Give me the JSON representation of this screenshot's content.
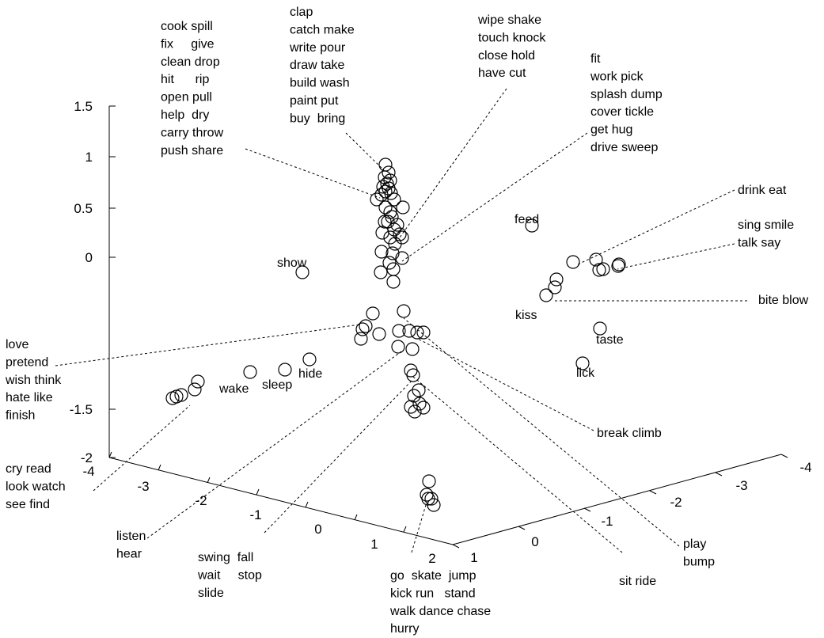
{
  "chart_data": {
    "type": "scatter",
    "title": "",
    "xlabel": "",
    "ylabel": "",
    "zlabel": "",
    "projection": "3d",
    "grid": false,
    "z_axis": {
      "ticks": [
        "1.5",
        "1",
        "0.5",
        "0",
        "-1.5",
        "-2"
      ]
    },
    "left_axis": {
      "ticks": [
        "-4",
        "-3",
        "-2",
        "-1",
        "0",
        "1",
        "2"
      ]
    },
    "right_axis": {
      "ticks": [
        "1",
        "0",
        "-1",
        "-2",
        "-3",
        "-4"
      ]
    },
    "point_labels": [
      "show",
      "feed",
      "kiss",
      "taste",
      "lick",
      "hide",
      "sleep",
      "wake"
    ],
    "cluster_labels": [
      {
        "lines": [
          "cook spill",
          "fix     give",
          "clean drop",
          "hit      rip",
          "open pull",
          "help  dry",
          "carry throw",
          "push share"
        ]
      },
      {
        "lines": [
          "clap",
          "catch make",
          "write pour",
          "draw take",
          "build wash",
          "paint put",
          "buy  bring"
        ]
      },
      {
        "lines": [
          "wipe shake",
          "touch knock",
          "close hold",
          "have cut"
        ]
      },
      {
        "lines": [
          "fit",
          "work pick",
          "splash dump",
          "cover tickle",
          "get hug",
          "drive sweep"
        ]
      },
      {
        "lines": [
          "drink eat"
        ]
      },
      {
        "lines": [
          "sing smile",
          "talk say"
        ]
      },
      {
        "lines": [
          "bite blow"
        ]
      },
      {
        "lines": [
          "love",
          "pretend",
          "wish think",
          "hate like",
          "finish"
        ]
      },
      {
        "lines": [
          "break climb"
        ]
      },
      {
        "lines": [
          "cry read",
          "look watch",
          "see find"
        ]
      },
      {
        "lines": [
          "listen",
          "hear"
        ]
      },
      {
        "lines": [
          "swing  fall",
          "wait     stop",
          "slide"
        ]
      },
      {
        "lines": [
          "go  skate  jump",
          "kick run   stand",
          "walk dance chase",
          "hurry"
        ]
      },
      {
        "lines": [
          "sit ride"
        ]
      },
      {
        "lines": [
          "play",
          "bump"
        ]
      }
    ]
  }
}
